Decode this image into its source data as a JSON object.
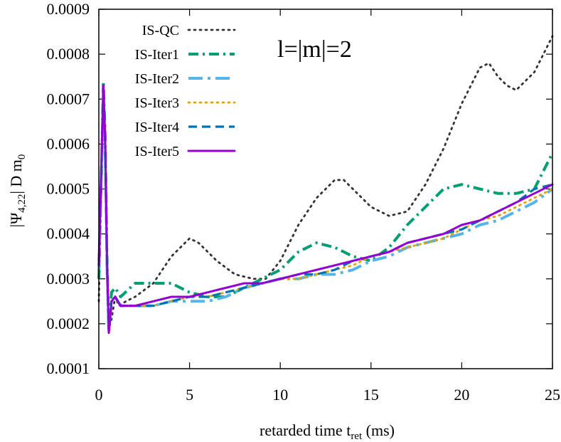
{
  "chart_data": {
    "type": "line",
    "xlabel": {
      "main": "retarded time t",
      "sub": "ret",
      "tail": " (ms)"
    },
    "ylabel": {
      "pre": "|Ψ",
      "sub": "4,22",
      "post": "| D m",
      "sub2": "0"
    },
    "annotation": "l=|m|=2",
    "xlim": [
      0,
      25
    ],
    "ylim": [
      0.0001,
      0.0009
    ],
    "x_ticks": [
      "0",
      "5",
      "10",
      "15",
      "20",
      "25"
    ],
    "y_ticks": [
      "0.0001",
      "0.0002",
      "0.0003",
      "0.0004",
      "0.0005",
      "0.0006",
      "0.0007",
      "0.0008",
      "0.0009"
    ],
    "legend_position": "top-left",
    "series": [
      {
        "name": "IS-QC",
        "color": "#333333",
        "dash": "dotted",
        "points": [
          [
            0,
            0.00025
          ],
          [
            0.15,
            0.00055
          ],
          [
            0.25,
            0.00073
          ],
          [
            0.35,
            0.00062
          ],
          [
            0.45,
            0.00035
          ],
          [
            0.55,
            0.00019
          ],
          [
            0.7,
            0.00021
          ],
          [
            0.9,
            0.00026
          ],
          [
            1.1,
            0.00024
          ],
          [
            1.5,
            0.00025
          ],
          [
            2,
            0.00026
          ],
          [
            3,
            0.00029
          ],
          [
            4,
            0.00035
          ],
          [
            5,
            0.00039
          ],
          [
            5.5,
            0.00038
          ],
          [
            6.5,
            0.00034
          ],
          [
            7.5,
            0.00031
          ],
          [
            8.5,
            0.0003
          ],
          [
            9.2,
            0.0003
          ],
          [
            10,
            0.00034
          ],
          [
            11,
            0.00042
          ],
          [
            12,
            0.00048
          ],
          [
            13,
            0.00052
          ],
          [
            13.5,
            0.00052
          ],
          [
            14,
            0.0005
          ],
          [
            15,
            0.00046
          ],
          [
            16,
            0.00044
          ],
          [
            17,
            0.00045
          ],
          [
            18,
            0.00051
          ],
          [
            19,
            0.00059
          ],
          [
            20,
            0.00069
          ],
          [
            21,
            0.00077
          ],
          [
            21.5,
            0.00078
          ],
          [
            22,
            0.00075
          ],
          [
            22.5,
            0.00073
          ],
          [
            23,
            0.00072
          ],
          [
            24,
            0.00076
          ],
          [
            25,
            0.00084
          ]
        ]
      },
      {
        "name": "IS-Iter1",
        "color": "#009e73",
        "dash": "dashdot",
        "points": [
          [
            0,
            0.0003
          ],
          [
            0.15,
            0.00055
          ],
          [
            0.25,
            0.00074
          ],
          [
            0.35,
            0.00062
          ],
          [
            0.45,
            0.00035
          ],
          [
            0.55,
            0.00019
          ],
          [
            0.7,
            0.00027
          ],
          [
            0.9,
            0.00028
          ],
          [
            1.2,
            0.00026
          ],
          [
            2,
            0.00029
          ],
          [
            3,
            0.00029
          ],
          [
            4,
            0.00029
          ],
          [
            5,
            0.00027
          ],
          [
            6,
            0.00026
          ],
          [
            7,
            0.00026
          ],
          [
            8,
            0.00028
          ],
          [
            9,
            0.0003
          ],
          [
            10,
            0.00032
          ],
          [
            11,
            0.00036
          ],
          [
            12,
            0.00038
          ],
          [
            13,
            0.00037
          ],
          [
            14,
            0.00035
          ],
          [
            15,
            0.00034
          ],
          [
            16,
            0.00037
          ],
          [
            17,
            0.00042
          ],
          [
            18,
            0.00046
          ],
          [
            19,
            0.0005
          ],
          [
            20,
            0.00051
          ],
          [
            21,
            0.0005
          ],
          [
            22,
            0.00049
          ],
          [
            23,
            0.00049
          ],
          [
            24,
            0.0005
          ],
          [
            25,
            0.00058
          ]
        ]
      },
      {
        "name": "IS-Iter2",
        "color": "#56b4e9",
        "dash": "dashdotlong",
        "points": [
          [
            0,
            0.00032
          ],
          [
            0.15,
            0.00055
          ],
          [
            0.25,
            0.00072
          ],
          [
            0.35,
            0.0006
          ],
          [
            0.45,
            0.00033
          ],
          [
            0.55,
            0.00018
          ],
          [
            0.7,
            0.00025
          ],
          [
            0.9,
            0.00026
          ],
          [
            1.2,
            0.00024
          ],
          [
            2,
            0.00024
          ],
          [
            3,
            0.00024
          ],
          [
            4,
            0.00025
          ],
          [
            5,
            0.00025
          ],
          [
            6,
            0.00025
          ],
          [
            7,
            0.00026
          ],
          [
            8,
            0.00028
          ],
          [
            9,
            0.00029
          ],
          [
            10,
            0.0003
          ],
          [
            11,
            0.0003
          ],
          [
            12,
            0.00031
          ],
          [
            13,
            0.00031
          ],
          [
            14,
            0.00032
          ],
          [
            15,
            0.00034
          ],
          [
            16,
            0.00035
          ],
          [
            17,
            0.00037
          ],
          [
            18,
            0.00038
          ],
          [
            19,
            0.00039
          ],
          [
            20,
            0.0004
          ],
          [
            21,
            0.00042
          ],
          [
            22,
            0.00043
          ],
          [
            23,
            0.00045
          ],
          [
            24,
            0.00047
          ],
          [
            25,
            0.0005
          ]
        ]
      },
      {
        "name": "IS-Iter3",
        "color": "#e69f00",
        "dash": "dotted",
        "points": [
          [
            0,
            0.00036
          ],
          [
            0.15,
            0.00056
          ],
          [
            0.25,
            0.00073
          ],
          [
            0.35,
            0.00061
          ],
          [
            0.45,
            0.00034
          ],
          [
            0.55,
            0.00018
          ],
          [
            0.7,
            0.00025
          ],
          [
            0.9,
            0.00026
          ],
          [
            1.2,
            0.00024
          ],
          [
            2,
            0.00024
          ],
          [
            3,
            0.00024
          ],
          [
            4,
            0.00025
          ],
          [
            5,
            0.00026
          ],
          [
            6,
            0.00026
          ],
          [
            7,
            0.00027
          ],
          [
            8,
            0.00028
          ],
          [
            9,
            0.00029
          ],
          [
            10,
            0.0003
          ],
          [
            11,
            0.0003
          ],
          [
            12,
            0.00031
          ],
          [
            13,
            0.00032
          ],
          [
            14,
            0.00033
          ],
          [
            15,
            0.00035
          ],
          [
            16,
            0.00036
          ],
          [
            17,
            0.00037
          ],
          [
            18,
            0.00038
          ],
          [
            19,
            0.00039
          ],
          [
            20,
            0.00041
          ],
          [
            21,
            0.00043
          ],
          [
            22,
            0.00044
          ],
          [
            23,
            0.00046
          ],
          [
            24,
            0.00048
          ],
          [
            25,
            0.0005
          ]
        ]
      },
      {
        "name": "IS-Iter4",
        "color": "#0072b2",
        "dash": "dashed",
        "points": [
          [
            0,
            0.00034
          ],
          [
            0.15,
            0.00056
          ],
          [
            0.25,
            0.00072
          ],
          [
            0.35,
            0.0006
          ],
          [
            0.45,
            0.00033
          ],
          [
            0.55,
            0.00018
          ],
          [
            0.7,
            0.00025
          ],
          [
            0.9,
            0.00026
          ],
          [
            1.2,
            0.00024
          ],
          [
            2,
            0.00024
          ],
          [
            3,
            0.00024
          ],
          [
            4,
            0.00025
          ],
          [
            5,
            0.00026
          ],
          [
            6,
            0.00026
          ],
          [
            7,
            0.00027
          ],
          [
            8,
            0.00028
          ],
          [
            9,
            0.00029
          ],
          [
            10,
            0.0003
          ],
          [
            11,
            0.00031
          ],
          [
            12,
            0.00031
          ],
          [
            13,
            0.00032
          ],
          [
            14,
            0.00034
          ],
          [
            15,
            0.00035
          ],
          [
            16,
            0.00036
          ],
          [
            17,
            0.00038
          ],
          [
            18,
            0.00039
          ],
          [
            19,
            0.0004
          ],
          [
            20,
            0.00041
          ],
          [
            21,
            0.00043
          ],
          [
            22,
            0.00045
          ],
          [
            23,
            0.00047
          ],
          [
            24,
            0.0005
          ],
          [
            25,
            0.00051
          ]
        ]
      },
      {
        "name": "IS-Iter5",
        "color": "#9400d3",
        "dash": "solid",
        "points": [
          [
            0,
            0.00033
          ],
          [
            0.15,
            0.00057
          ],
          [
            0.25,
            0.00073
          ],
          [
            0.35,
            0.00061
          ],
          [
            0.45,
            0.00034
          ],
          [
            0.55,
            0.00018
          ],
          [
            0.7,
            0.00025
          ],
          [
            0.9,
            0.00026
          ],
          [
            1.2,
            0.00024
          ],
          [
            2,
            0.00024
          ],
          [
            3,
            0.00025
          ],
          [
            4,
            0.00026
          ],
          [
            5,
            0.00026
          ],
          [
            6,
            0.00027
          ],
          [
            7,
            0.00028
          ],
          [
            8,
            0.00029
          ],
          [
            9,
            0.00029
          ],
          [
            10,
            0.0003
          ],
          [
            11,
            0.00031
          ],
          [
            12,
            0.00032
          ],
          [
            13,
            0.00033
          ],
          [
            14,
            0.00034
          ],
          [
            15,
            0.00035
          ],
          [
            16,
            0.00036
          ],
          [
            17,
            0.00038
          ],
          [
            18,
            0.00039
          ],
          [
            19,
            0.0004
          ],
          [
            20,
            0.00042
          ],
          [
            21,
            0.00043
          ],
          [
            22,
            0.00045
          ],
          [
            23,
            0.00047
          ],
          [
            24,
            0.00049
          ],
          [
            25,
            0.00051
          ]
        ]
      }
    ]
  }
}
